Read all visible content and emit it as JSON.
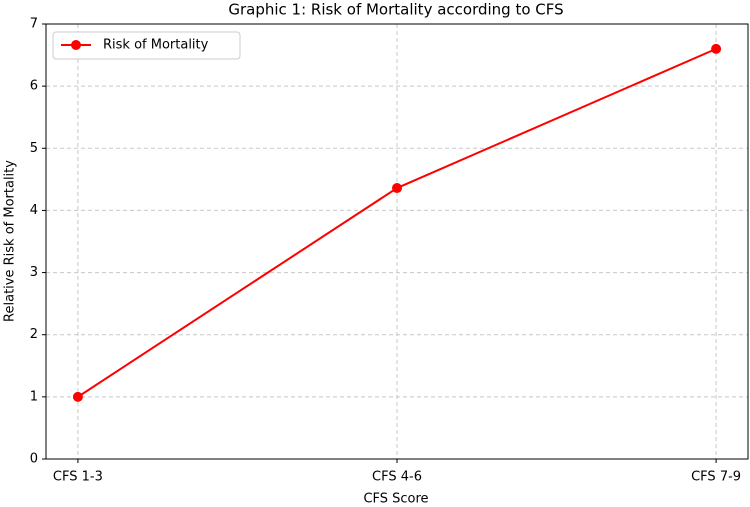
{
  "chart_data": {
    "type": "line",
    "title": "Graphic 1: Risk of Mortality according to CFS",
    "x_label": "CFS Score",
    "y_label": "Relative Risk of Mortality",
    "categories": [
      "CFS 1-3",
      "CFS 4-6",
      "CFS 7-9"
    ],
    "series": [
      {
        "name": "Risk of Mortality",
        "color": "#ff0000",
        "values": [
          1,
          4.36,
          6.6
        ]
      }
    ],
    "ylim": [
      0,
      7
    ],
    "yticks": [
      0,
      1,
      2,
      3,
      4,
      5,
      6,
      7
    ],
    "grid": true,
    "legend": "upper left"
  }
}
